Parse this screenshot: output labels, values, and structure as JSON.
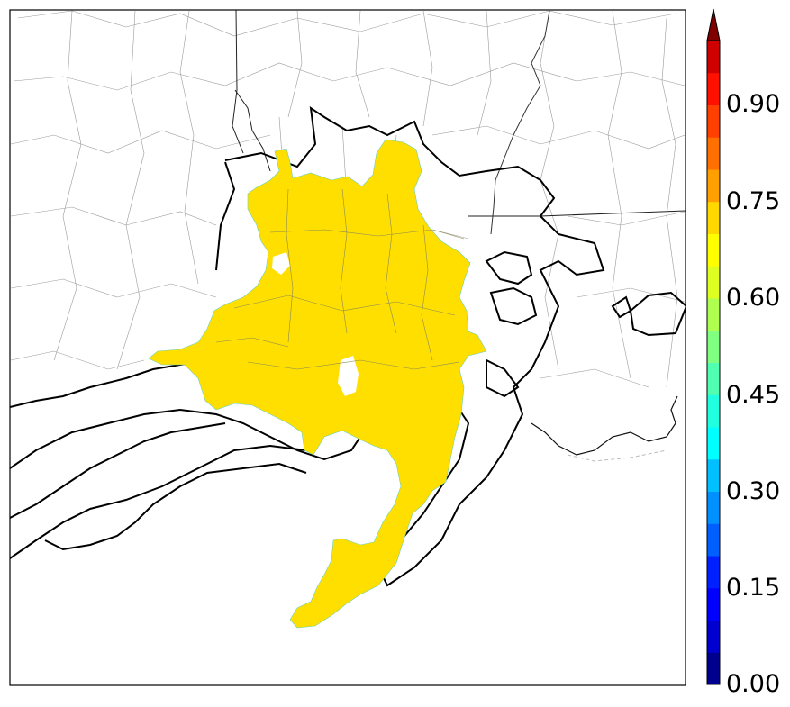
{
  "colorbar": {
    "tick_labels": [
      "0.00",
      "0.15",
      "0.30",
      "0.45",
      "0.60",
      "0.75",
      "0.90"
    ],
    "min": 0.0,
    "max": 1.0,
    "levels": 20,
    "extend": "max",
    "colors": [
      "#00008f",
      "#0000cf",
      "#0000ff",
      "#0020ff",
      "#0060ff",
      "#0090ff",
      "#00c0ff",
      "#00ffff",
      "#20ffdf",
      "#50ffaf",
      "#80ff80",
      "#afff50",
      "#dfff20",
      "#ffff00",
      "#ffd800",
      "#ffa000",
      "#ff7000",
      "#ff4000",
      "#ff1000",
      "#cf0000",
      "#800000"
    ]
  },
  "map": {
    "fill_color": "#ffdf00",
    "fill_value": 0.7,
    "contour_color": "#000000",
    "boundary_color": "#999999"
  }
}
